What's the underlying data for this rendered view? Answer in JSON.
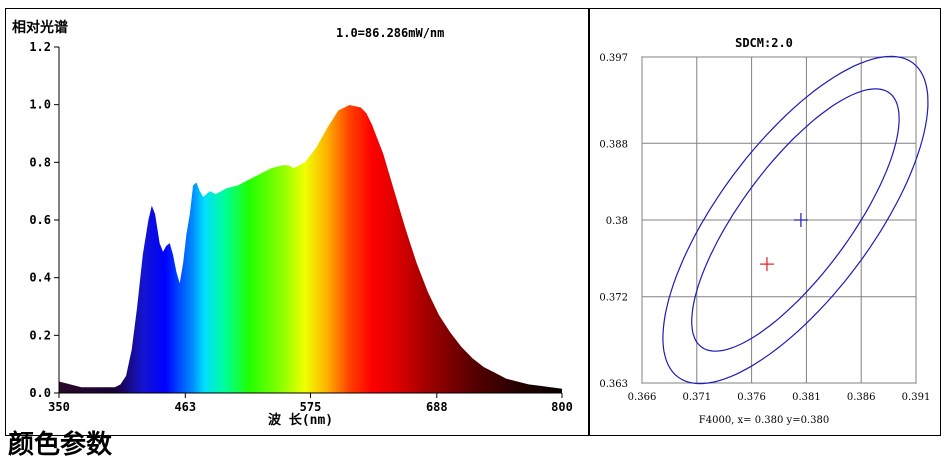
{
  "section_heading": "颜色参数",
  "chart_data": [
    {
      "type": "area",
      "title": "相对光谱",
      "annotation": "1.0=86.286mW/nm",
      "xlabel": "波 长(nm)",
      "ylabel": "",
      "xlim": [
        350,
        800
      ],
      "ylim": [
        0,
        1.2
      ],
      "x_ticks": [
        "350",
        "463",
        "575",
        "688",
        "800"
      ],
      "y_ticks": [
        "0.0",
        "0.2",
        "0.4",
        "0.6",
        "0.8",
        "1.0",
        "1.2"
      ],
      "grid": false,
      "fill": "wavelength color gradient (visible spectrum)",
      "series": [
        {
          "x": [
            350,
            360,
            370,
            380,
            390,
            400,
            405,
            410,
            415,
            420,
            425,
            430,
            433,
            436,
            440,
            443,
            446,
            449,
            452,
            455,
            458,
            461,
            464,
            467,
            470,
            473,
            476,
            479,
            482,
            485,
            490,
            495,
            500,
            510,
            520,
            530,
            540,
            550,
            555,
            560,
            570,
            580,
            590,
            600,
            610,
            620,
            625,
            630,
            640,
            650,
            660,
            670,
            680,
            690,
            700,
            710,
            720,
            730,
            740,
            750,
            760,
            770,
            780,
            790,
            800
          ],
          "values": [
            0.04,
            0.03,
            0.02,
            0.02,
            0.02,
            0.02,
            0.03,
            0.06,
            0.15,
            0.3,
            0.48,
            0.6,
            0.65,
            0.62,
            0.52,
            0.49,
            0.51,
            0.52,
            0.48,
            0.42,
            0.38,
            0.45,
            0.55,
            0.62,
            0.72,
            0.73,
            0.7,
            0.68,
            0.69,
            0.7,
            0.69,
            0.7,
            0.71,
            0.72,
            0.74,
            0.76,
            0.78,
            0.79,
            0.79,
            0.78,
            0.8,
            0.85,
            0.92,
            0.98,
            0.999,
            0.99,
            0.97,
            0.93,
            0.83,
            0.7,
            0.57,
            0.45,
            0.35,
            0.27,
            0.21,
            0.16,
            0.12,
            0.09,
            0.07,
            0.05,
            0.04,
            0.03,
            0.025,
            0.02,
            0.015
          ]
        }
      ]
    },
    {
      "type": "scatter",
      "title": "SDCM:2.0",
      "xlim": [
        0.366,
        0.391
      ],
      "ylim": [
        0.363,
        0.397
      ],
      "x_ticks": [
        "0.366",
        "0.371",
        "0.376",
        "0.381",
        "0.386",
        "0.391"
      ],
      "y_ticks": [
        "0.363",
        "0.372",
        "0.38",
        "0.388",
        "0.397"
      ],
      "grid": true,
      "caption": "F4000, x= 0.380 y=0.380",
      "points": [
        {
          "x": 0.3805,
          "y": 0.38,
          "color": "#1c1cb4"
        },
        {
          "x": 0.3774,
          "y": 0.3754,
          "color": "#e02020"
        }
      ],
      "ellipses": [
        {
          "center": [
            0.38,
            0.38
          ],
          "a": 0.0158,
          "b": 0.0052,
          "angle_deg": 58,
          "color": "#1c1cb4"
        },
        {
          "center": [
            0.38,
            0.38
          ],
          "a": 0.0196,
          "b": 0.0073,
          "angle_deg": 58,
          "color": "#1c1cb4"
        }
      ]
    }
  ]
}
